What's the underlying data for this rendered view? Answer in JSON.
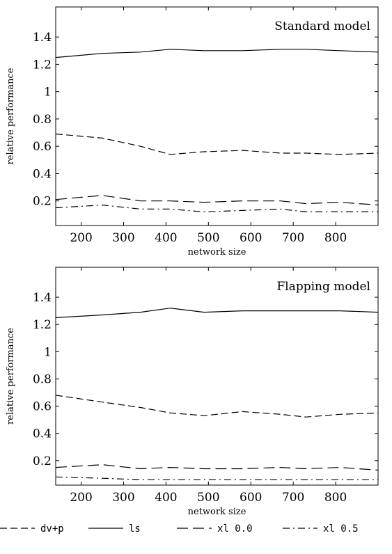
{
  "chart_data": [
    {
      "type": "line",
      "title": "Standard model",
      "xlabel": "network size",
      "ylabel": "relative performance",
      "xlim": [
        140,
        900
      ],
      "ylim": [
        0.02,
        1.62
      ],
      "xticks": [
        200,
        300,
        400,
        500,
        600,
        700,
        800
      ],
      "xtick_labels": [
        "200",
        "300",
        "400",
        "500",
        "600",
        "700",
        "800"
      ],
      "yticks": [
        0.2,
        0.4,
        0.6,
        0.8,
        1.0,
        1.2,
        1.4
      ],
      "ytick_labels": [
        "0.2",
        "0.4",
        "0.6",
        "0.8",
        "1",
        "1.2",
        "1.4"
      ],
      "grid": false,
      "x": [
        140,
        250,
        340,
        410,
        490,
        580,
        670,
        730,
        810,
        900
      ],
      "series": [
        {
          "name": "dv+p",
          "values": [
            0.69,
            0.66,
            0.6,
            0.54,
            0.56,
            0.57,
            0.55,
            0.55,
            0.54,
            0.55
          ]
        },
        {
          "name": "ls",
          "values": [
            1.25,
            1.28,
            1.29,
            1.31,
            1.3,
            1.3,
            1.31,
            1.31,
            1.3,
            1.29
          ]
        },
        {
          "name": "xl 0.0",
          "values": [
            0.21,
            0.24,
            0.2,
            0.2,
            0.19,
            0.2,
            0.2,
            0.18,
            0.19,
            0.17
          ]
        },
        {
          "name": "xl 0.5",
          "values": [
            0.15,
            0.17,
            0.14,
            0.14,
            0.12,
            0.13,
            0.14,
            0.12,
            0.12,
            0.12
          ]
        }
      ]
    },
    {
      "type": "line",
      "title": "Flapping model",
      "xlabel": "network size",
      "ylabel": "relative performance",
      "xlim": [
        140,
        900
      ],
      "ylim": [
        0.02,
        1.62
      ],
      "xticks": [
        200,
        300,
        400,
        500,
        600,
        700,
        800
      ],
      "xtick_labels": [
        "200",
        "300",
        "400",
        "500",
        "600",
        "700",
        "800"
      ],
      "yticks": [
        0.2,
        0.4,
        0.6,
        0.8,
        1.0,
        1.2,
        1.4
      ],
      "ytick_labels": [
        "0.2",
        "0.4",
        "0.6",
        "0.8",
        "1",
        "1.2",
        "1.4"
      ],
      "grid": false,
      "x": [
        140,
        250,
        340,
        410,
        490,
        580,
        670,
        730,
        810,
        900
      ],
      "series": [
        {
          "name": "dv+p",
          "values": [
            0.68,
            0.63,
            0.59,
            0.55,
            0.53,
            0.56,
            0.54,
            0.52,
            0.54,
            0.55
          ]
        },
        {
          "name": "ls",
          "values": [
            1.25,
            1.27,
            1.29,
            1.32,
            1.29,
            1.3,
            1.3,
            1.3,
            1.3,
            1.29
          ]
        },
        {
          "name": "xl 0.0",
          "values": [
            0.15,
            0.17,
            0.14,
            0.15,
            0.14,
            0.14,
            0.15,
            0.14,
            0.15,
            0.13
          ]
        },
        {
          "name": "xl 0.5",
          "values": [
            0.08,
            0.07,
            0.06,
            0.06,
            0.06,
            0.06,
            0.06,
            0.06,
            0.06,
            0.06
          ]
        }
      ]
    }
  ],
  "legend": {
    "placement": "bottom",
    "items": [
      {
        "label": "dv+p",
        "dash": "10,5"
      },
      {
        "label": "ls",
        "dash": ""
      },
      {
        "label": "xl 0.0",
        "dash": "16,7"
      },
      {
        "label": "xl 0.5",
        "dash": "10,5,2,5"
      }
    ]
  }
}
